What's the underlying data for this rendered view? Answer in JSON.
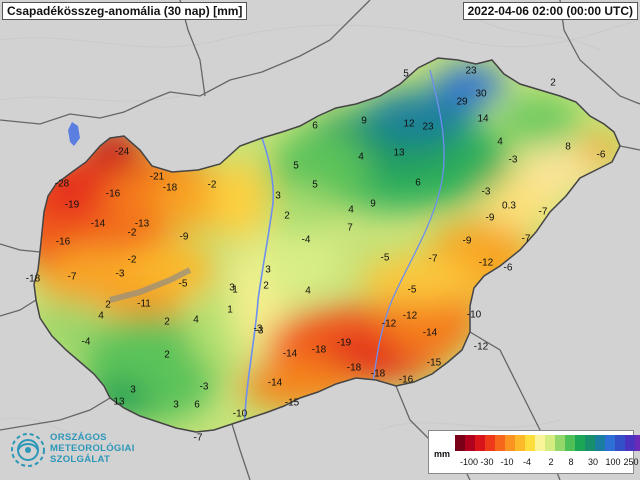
{
  "header": {
    "title": "Csapadékösszeg-anomália (30 nap) [mm]",
    "timestamp": "2022-04-06 02:00 (00:00 UTC)"
  },
  "logo": {
    "line1": "ORSZÁGOS",
    "line2": "METEOROLÓGIAI",
    "line3": "SZOLGÁLAT",
    "color": "#2d97b8"
  },
  "legend": {
    "unit": "mm",
    "colors": [
      "#7a0018",
      "#b0001e",
      "#d9141b",
      "#ee3a19",
      "#f7671b",
      "#fa931f",
      "#fdb92a",
      "#fede3c",
      "#fbf59a",
      "#d4ec80",
      "#93d66a",
      "#4fbf57",
      "#1ba655",
      "#18906b",
      "#1a7ea0",
      "#2d6fd4",
      "#3450c8",
      "#4a33bf",
      "#6b2bb8",
      "#8f2dc0"
    ],
    "ticks": [
      "-100",
      "-30",
      "-10",
      "-4",
      "2",
      "8",
      "30",
      "100",
      "250"
    ]
  },
  "map": {
    "region": "Hungary",
    "values": [
      {
        "v": "-24",
        "x": -24
      },
      {
        "v": "-28"
      },
      {
        "v": "-21"
      },
      {
        "v": "-16"
      },
      {
        "v": "-18"
      },
      {
        "v": "-2"
      },
      {
        "v": "-19"
      },
      {
        "v": "-14"
      },
      {
        "v": "-13"
      },
      {
        "v": "-2"
      },
      {
        "v": "-16"
      },
      {
        "v": "-9"
      },
      {
        "v": "-18"
      },
      {
        "v": "-7"
      },
      {
        "v": "-3"
      },
      {
        "v": "-2"
      },
      {
        "v": "-5"
      },
      {
        "v": "2"
      },
      {
        "v": "-11"
      },
      {
        "v": "4"
      },
      {
        "v": "2"
      },
      {
        "v": "1"
      },
      {
        "v": "-4"
      },
      {
        "v": "4"
      },
      {
        "v": "3"
      },
      {
        "v": "2"
      },
      {
        "v": "-3"
      },
      {
        "v": "3"
      },
      {
        "v": "6"
      },
      {
        "v": "3"
      },
      {
        "v": "13"
      },
      {
        "v": "-7"
      },
      {
        "v": "-10"
      },
      {
        "v": "-15"
      },
      {
        "v": "-14"
      },
      {
        "v": "-3"
      },
      {
        "v": "-14"
      },
      {
        "v": "-18"
      },
      {
        "v": "-19"
      },
      {
        "v": "-18"
      },
      {
        "v": "-18"
      },
      {
        "v": "-16"
      },
      {
        "v": "-15"
      },
      {
        "v": "-12"
      },
      {
        "v": "-14"
      },
      {
        "v": "-12"
      },
      {
        "v": "-12"
      },
      {
        "v": "-10"
      },
      {
        "v": "-5"
      },
      {
        "v": "-5"
      },
      {
        "v": "-7"
      },
      {
        "v": "-9"
      },
      {
        "v": "-12"
      },
      {
        "v": "-6"
      },
      {
        "v": "-7"
      },
      {
        "v": "-9"
      },
      {
        "v": "-3"
      },
      {
        "v": "0.3"
      },
      {
        "v": "-7"
      },
      {
        "v": "-3"
      },
      {
        "v": "-6"
      },
      {
        "v": "8"
      },
      {
        "v": "4"
      },
      {
        "v": "2"
      },
      {
        "v": "14"
      },
      {
        "v": "30"
      },
      {
        "v": "29"
      },
      {
        "v": "23"
      },
      {
        "v": "5"
      },
      {
        "v": "12"
      },
      {
        "v": "23"
      },
      {
        "v": "9"
      },
      {
        "v": "6"
      },
      {
        "v": "4"
      },
      {
        "v": "13"
      },
      {
        "v": "6"
      },
      {
        "v": "5"
      },
      {
        "v": "5"
      },
      {
        "v": "3"
      },
      {
        "v": "2"
      },
      {
        "v": "4"
      },
      {
        "v": "9"
      },
      {
        "v": "7"
      },
      {
        "v": "-4"
      },
      {
        "v": "3"
      },
      {
        "v": "2"
      },
      {
        "v": "4"
      },
      {
        "v": "1"
      },
      {
        "v": "-3"
      }
    ]
  }
}
